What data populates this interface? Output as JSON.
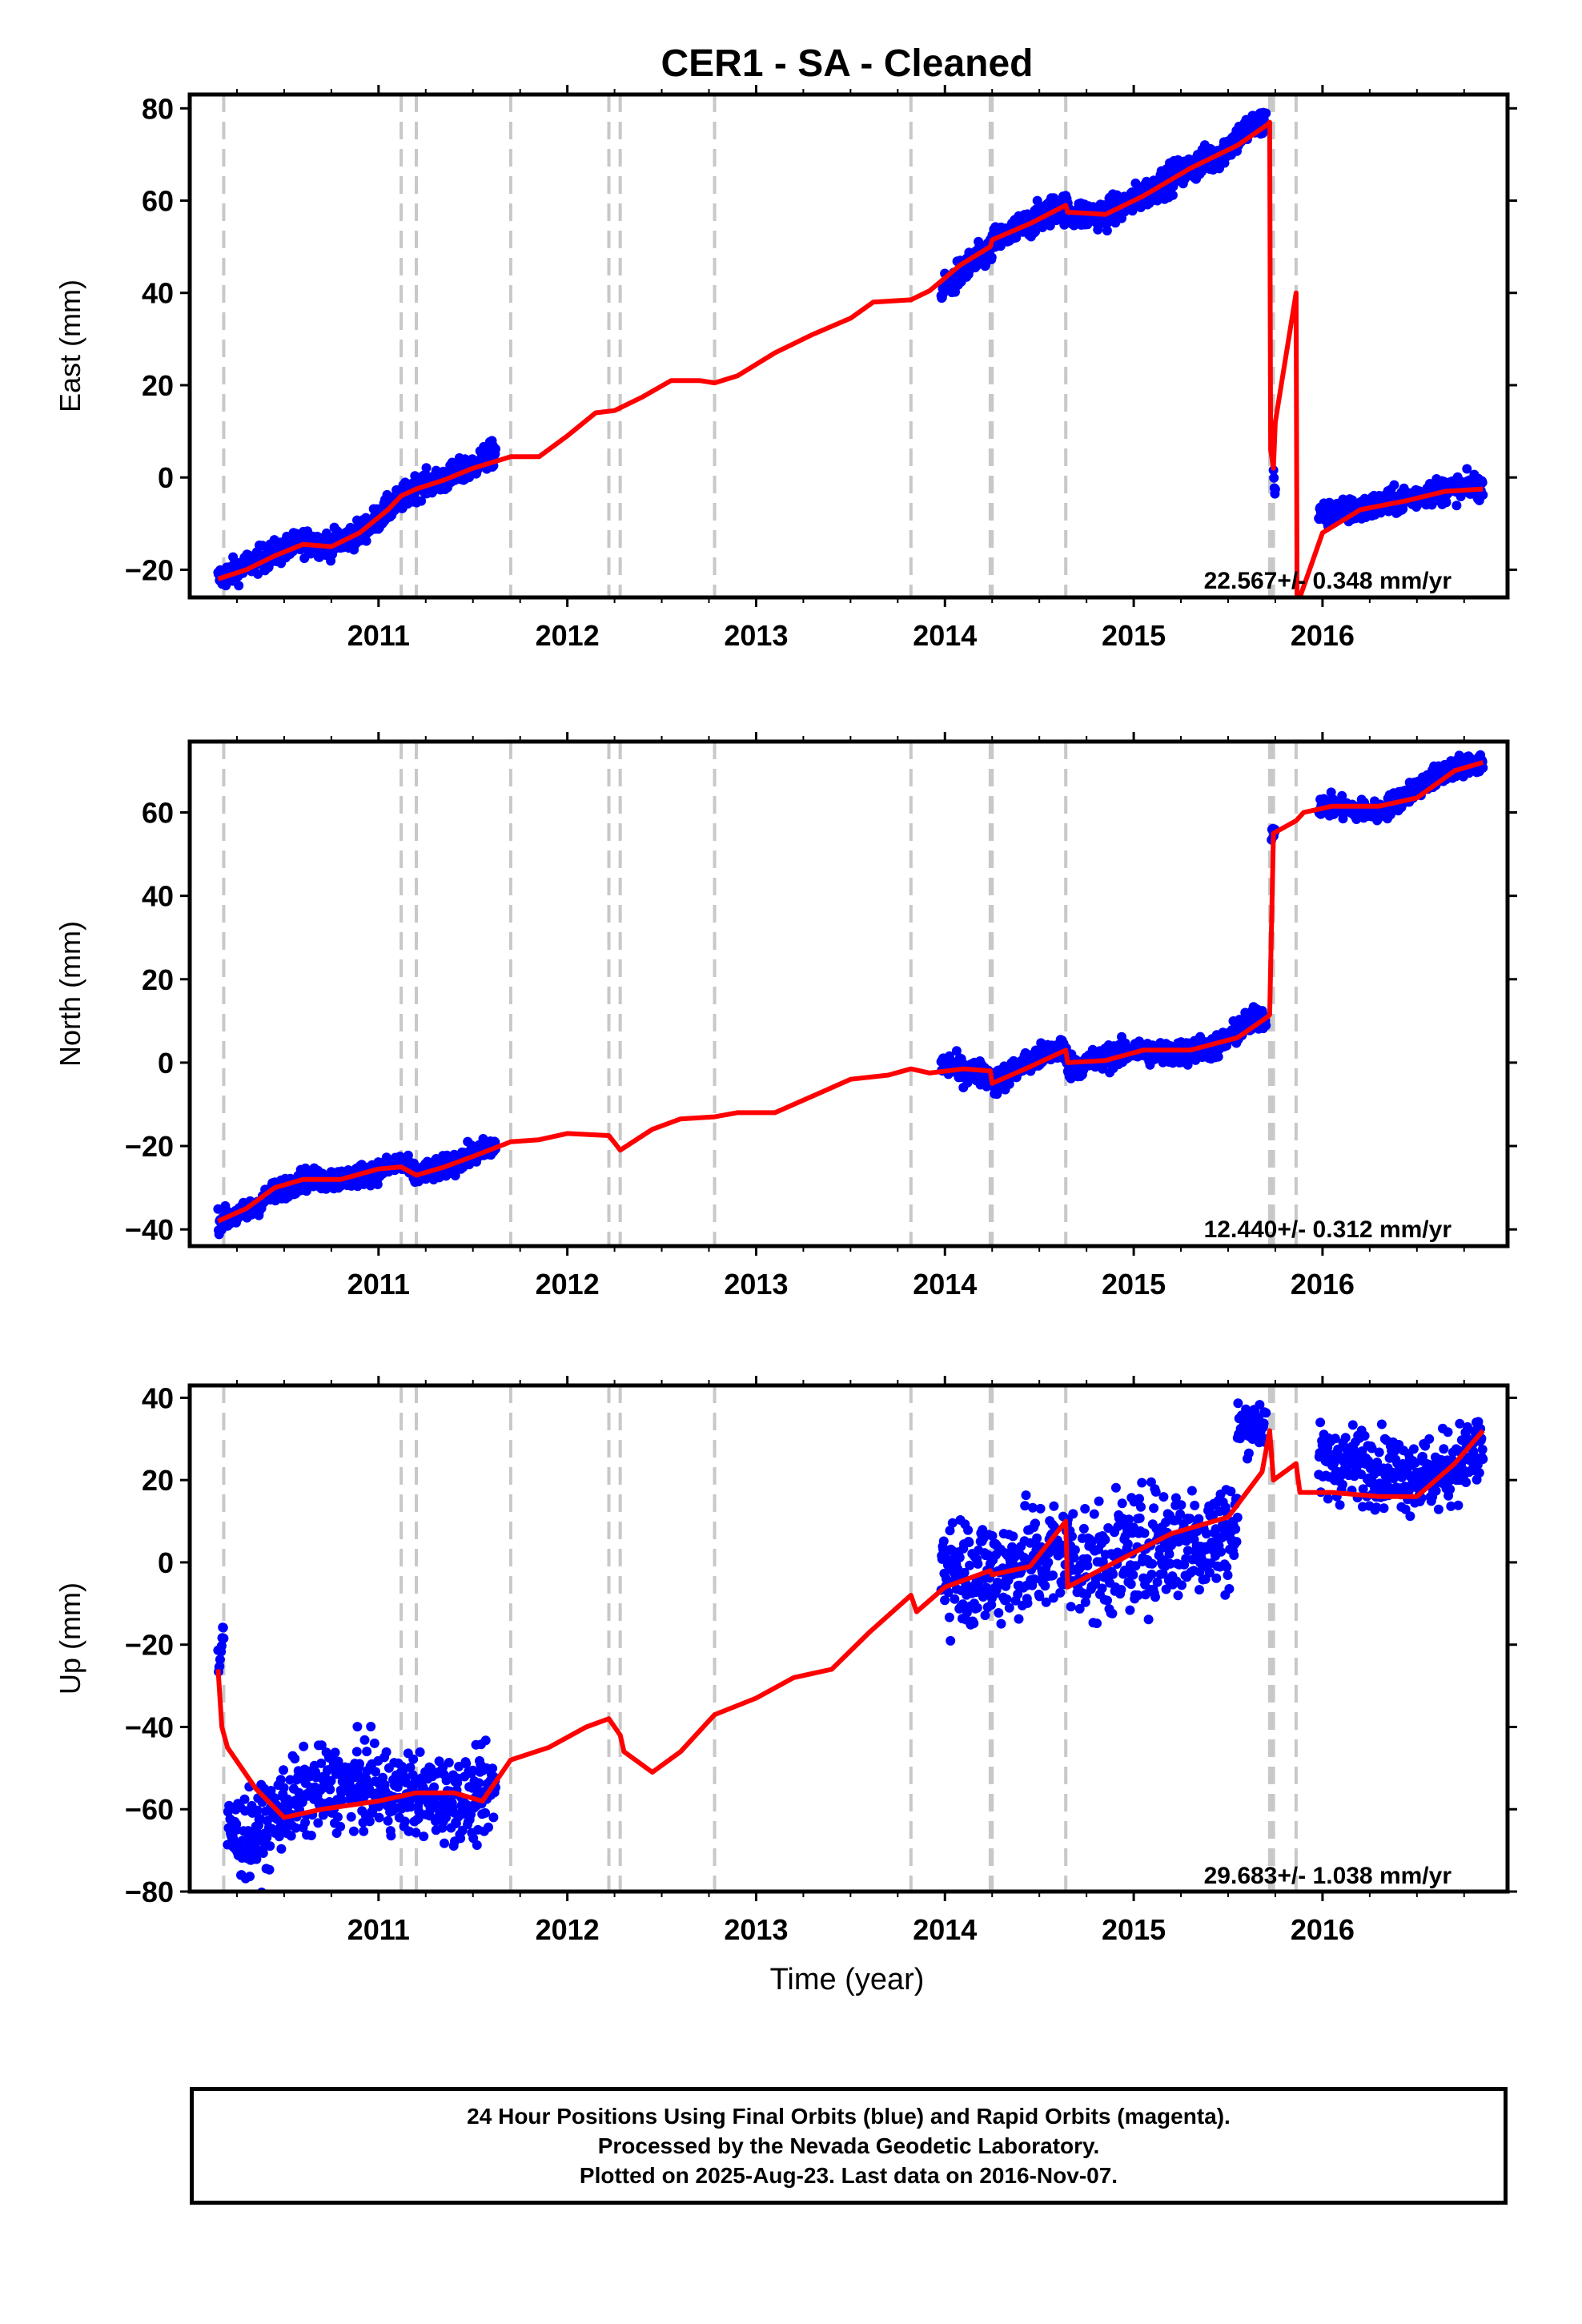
{
  "title": "CER1  - SA - Cleaned",
  "xlabel": "Time (year)",
  "footer": [
    "24 Hour Positions Using Final Orbits (blue) and Rapid Orbits (magenta).",
    "Processed by the Nevada Geodetic Laboratory.",
    "Plotted on 2025-Aug-23. Last data on 2016-Nov-07."
  ],
  "colors": {
    "points": "#0000ff",
    "model": "#ff0000",
    "events": "#c8c8c8",
    "axis": "#000000"
  },
  "chart_data": [
    {
      "type": "scatter",
      "ylabel": "East (mm)",
      "rate_label": "22.567+/- 0.348 mm/yr",
      "xlim": [
        2010.0,
        2016.98
      ],
      "ylim": [
        -26,
        83
      ],
      "xticks": [
        2011,
        2012,
        2013,
        2014,
        2015,
        2016
      ],
      "yticks": [
        -20,
        0,
        20,
        40,
        60,
        80
      ],
      "events": [
        2010.18,
        2011.12,
        2011.2,
        2011.7,
        2012.22,
        2012.28,
        2012.78,
        2013.82,
        2014.24,
        2014.25,
        2014.64,
        2015.72,
        2015.73,
        2015.74,
        2015.86
      ],
      "data_segments": [
        {
          "x": [
            2010.15,
            2010.3,
            2010.45,
            2010.6,
            2010.75,
            2010.9,
            2011.05,
            2011.2,
            2011.35,
            2011.5,
            2011.62
          ],
          "y": [
            -22,
            -19,
            -16.5,
            -14,
            -14.5,
            -12,
            -7,
            -2,
            -0.5,
            2.5,
            5.5
          ],
          "spread": 1.4
        },
        {
          "x": [
            2013.98,
            2014.1,
            2014.24,
            2014.26,
            2014.4,
            2014.62,
            2014.66,
            2014.85,
            2015.0,
            2015.2,
            2015.45,
            2015.62,
            2015.7
          ],
          "y": [
            40,
            45,
            49,
            51,
            54,
            59,
            57,
            57,
            60,
            65,
            70,
            76,
            77
          ],
          "spread": 1.6
        },
        {
          "x": [
            2015.74,
            2015.75
          ],
          "y": [
            1,
            -3
          ],
          "spread": 1.2
        },
        {
          "x": [
            2015.98,
            2016.2,
            2016.4,
            2016.6,
            2016.8,
            2016.85
          ],
          "y": [
            -8,
            -7,
            -5,
            -3,
            -2,
            -2
          ],
          "spread": 1.4
        }
      ],
      "model": {
        "x": [
          2010.15,
          2010.3,
          2010.45,
          2010.6,
          2010.75,
          2010.9,
          2011.05,
          2011.12,
          2011.2,
          2011.35,
          2011.5,
          2011.7,
          2011.85,
          2012.0,
          2012.15,
          2012.25,
          2012.4,
          2012.55,
          2012.7,
          2012.78,
          2012.9,
          2013.1,
          2013.3,
          2013.5,
          2013.62,
          2013.82,
          2013.92,
          2014.08,
          2014.24,
          2014.25,
          2014.45,
          2014.64,
          2014.65,
          2014.85,
          2015.05,
          2015.3,
          2015.55,
          2015.71,
          2015.72,
          2015.725,
          2015.74,
          2015.75,
          2015.86,
          2015.865,
          2015.88,
          2016.0,
          2016.2,
          2016.45,
          2016.65,
          2016.85
        ],
        "y": [
          -22,
          -20,
          -17,
          -14.5,
          -15,
          -12,
          -7,
          -4,
          -2.5,
          -0.5,
          2,
          4.5,
          4.5,
          9,
          14,
          14.5,
          17.5,
          21,
          21,
          20.5,
          22,
          27,
          31,
          34.5,
          38,
          38.5,
          40.5,
          46,
          50,
          51.5,
          55,
          59,
          57.5,
          57,
          61,
          67,
          72,
          76.5,
          77,
          6,
          2,
          12,
          40,
          -26,
          -26,
          -12,
          -7,
          -5,
          -3,
          -2.5
        ]
      }
    },
    {
      "type": "scatter",
      "ylabel": "North (mm)",
      "rate_label": "12.440+/- 0.312 mm/yr",
      "xlim": [
        2010.0,
        2016.98
      ],
      "ylim": [
        -44,
        77
      ],
      "xticks": [
        2011,
        2012,
        2013,
        2014,
        2015,
        2016
      ],
      "yticks": [
        -40,
        -20,
        0,
        20,
        40,
        60
      ],
      "events": [
        2010.18,
        2011.12,
        2011.2,
        2011.7,
        2012.22,
        2012.28,
        2012.78,
        2013.82,
        2014.24,
        2014.25,
        2014.64,
        2015.72,
        2015.73,
        2015.74,
        2015.86
      ],
      "data_segments": [
        {
          "x": [
            2010.15,
            2010.3,
            2010.45,
            2010.6,
            2010.8,
            2011.0,
            2011.12,
            2011.2,
            2011.35,
            2011.5,
            2011.62
          ],
          "y": [
            -38,
            -36,
            -31,
            -28,
            -28,
            -26,
            -24,
            -27,
            -25,
            -22,
            -20
          ],
          "spread": 1.3
        },
        {
          "x": [
            2013.98,
            2014.1,
            2014.24,
            2014.26,
            2014.4,
            2014.62,
            2014.66,
            2014.85,
            2015.0,
            2015.2,
            2015.45,
            2015.62,
            2015.7
          ],
          "y": [
            0,
            -2,
            -3,
            -5,
            -1,
            4,
            -1,
            1,
            3,
            2,
            4,
            10,
            11
          ],
          "spread": 1.5
        },
        {
          "x": [
            2015.73,
            2015.75
          ],
          "y": [
            55,
            56
          ],
          "spread": 1
        },
        {
          "x": [
            2015.98,
            2016.1,
            2016.3,
            2016.5,
            2016.7,
            2016.85
          ],
          "y": [
            62,
            61,
            60,
            66,
            71,
            72
          ],
          "spread": 1.3
        }
      ],
      "model": {
        "x": [
          2010.15,
          2010.3,
          2010.45,
          2010.6,
          2010.8,
          2011.0,
          2011.12,
          2011.2,
          2011.35,
          2011.5,
          2011.7,
          2011.85,
          2012.0,
          2012.22,
          2012.28,
          2012.45,
          2012.6,
          2012.78,
          2012.9,
          2013.1,
          2013.3,
          2013.5,
          2013.7,
          2013.82,
          2013.92,
          2014.1,
          2014.24,
          2014.25,
          2014.45,
          2014.64,
          2014.65,
          2014.85,
          2015.05,
          2015.3,
          2015.55,
          2015.71,
          2015.72,
          2015.74,
          2015.86,
          2015.9,
          2016.05,
          2016.3,
          2016.5,
          2016.7,
          2016.85
        ],
        "y": [
          -38,
          -35,
          -30,
          -28,
          -28,
          -25.5,
          -25,
          -27,
          -25,
          -22.5,
          -19,
          -18.5,
          -17,
          -17.5,
          -21,
          -16,
          -13.5,
          -13,
          -12,
          -12,
          -8,
          -4,
          -3,
          -1.5,
          -2.5,
          -1.5,
          -2,
          -5,
          -1,
          3,
          0,
          0.5,
          3,
          3,
          6,
          11,
          11.5,
          55,
          58,
          60,
          61.5,
          61.5,
          63.5,
          70,
          72
        ]
      }
    },
    {
      "type": "scatter",
      "ylabel": "Up (mm)",
      "rate_label": "29.683+/- 1.038 mm/yr",
      "xlim": [
        2010.0,
        2016.98
      ],
      "ylim": [
        -80,
        43
      ],
      "xticks": [
        2011,
        2012,
        2013,
        2014,
        2015,
        2016
      ],
      "yticks": [
        -80,
        -60,
        -40,
        -20,
        0,
        20,
        40
      ],
      "events": [
        2010.18,
        2011.12,
        2011.2,
        2011.7,
        2012.22,
        2012.28,
        2012.78,
        2013.82,
        2014.24,
        2014.25,
        2014.64,
        2015.72,
        2015.73,
        2015.74,
        2015.86
      ],
      "data_segments": [
        {
          "x": [
            2010.15,
            2010.18
          ],
          "y": [
            -25,
            -17
          ],
          "spread": 3
        },
        {
          "x": [
            2010.2,
            2010.35,
            2010.5,
            2010.7,
            2010.9,
            2011.1,
            2011.3,
            2011.5,
            2011.62
          ],
          "y": [
            -66,
            -67,
            -59,
            -55,
            -54,
            -56,
            -57,
            -58,
            -55
          ],
          "spread": 5
        },
        {
          "x": [
            2013.98,
            2014.2,
            2014.4,
            2014.62,
            2014.8,
            2015.0,
            2015.2,
            2015.4,
            2015.55
          ],
          "y": [
            0,
            -3,
            0,
            2,
            -1,
            3,
            5,
            6,
            8
          ],
          "spread": 7
        },
        {
          "x": [
            2015.55,
            2015.7
          ],
          "y": [
            33,
            34
          ],
          "spread": 3
        },
        {
          "x": [
            2015.98,
            2016.2,
            2016.4,
            2016.6,
            2016.85
          ],
          "y": [
            24,
            24,
            22,
            21,
            28
          ],
          "spread": 4.5
        }
      ],
      "model": {
        "x": [
          2010.15,
          2010.17,
          2010.2,
          2010.35,
          2010.5,
          2010.7,
          2011.0,
          2011.2,
          2011.4,
          2011.55,
          2011.7,
          2011.9,
          2012.1,
          2012.22,
          2012.28,
          2012.3,
          2012.45,
          2012.6,
          2012.78,
          2013.0,
          2013.2,
          2013.4,
          2013.6,
          2013.82,
          2013.85,
          2014.0,
          2014.24,
          2014.25,
          2014.45,
          2014.64,
          2014.65,
          2014.9,
          2015.2,
          2015.5,
          2015.68,
          2015.72,
          2015.74,
          2015.86,
          2015.88,
          2016.05,
          2016.3,
          2016.5,
          2016.7,
          2016.85
        ],
        "y": [
          -26,
          -40,
          -45,
          -55,
          -62,
          -60,
          -58,
          -56,
          -56,
          -58,
          -48,
          -45,
          -40,
          -38,
          -42,
          -46,
          -51,
          -46,
          -37,
          -33,
          -28,
          -26,
          -17,
          -8,
          -12,
          -6,
          -2,
          -3,
          -1,
          10,
          -6,
          0,
          7,
          11,
          22,
          32,
          20,
          24,
          17,
          17,
          16,
          16,
          24,
          32
        ]
      }
    }
  ]
}
